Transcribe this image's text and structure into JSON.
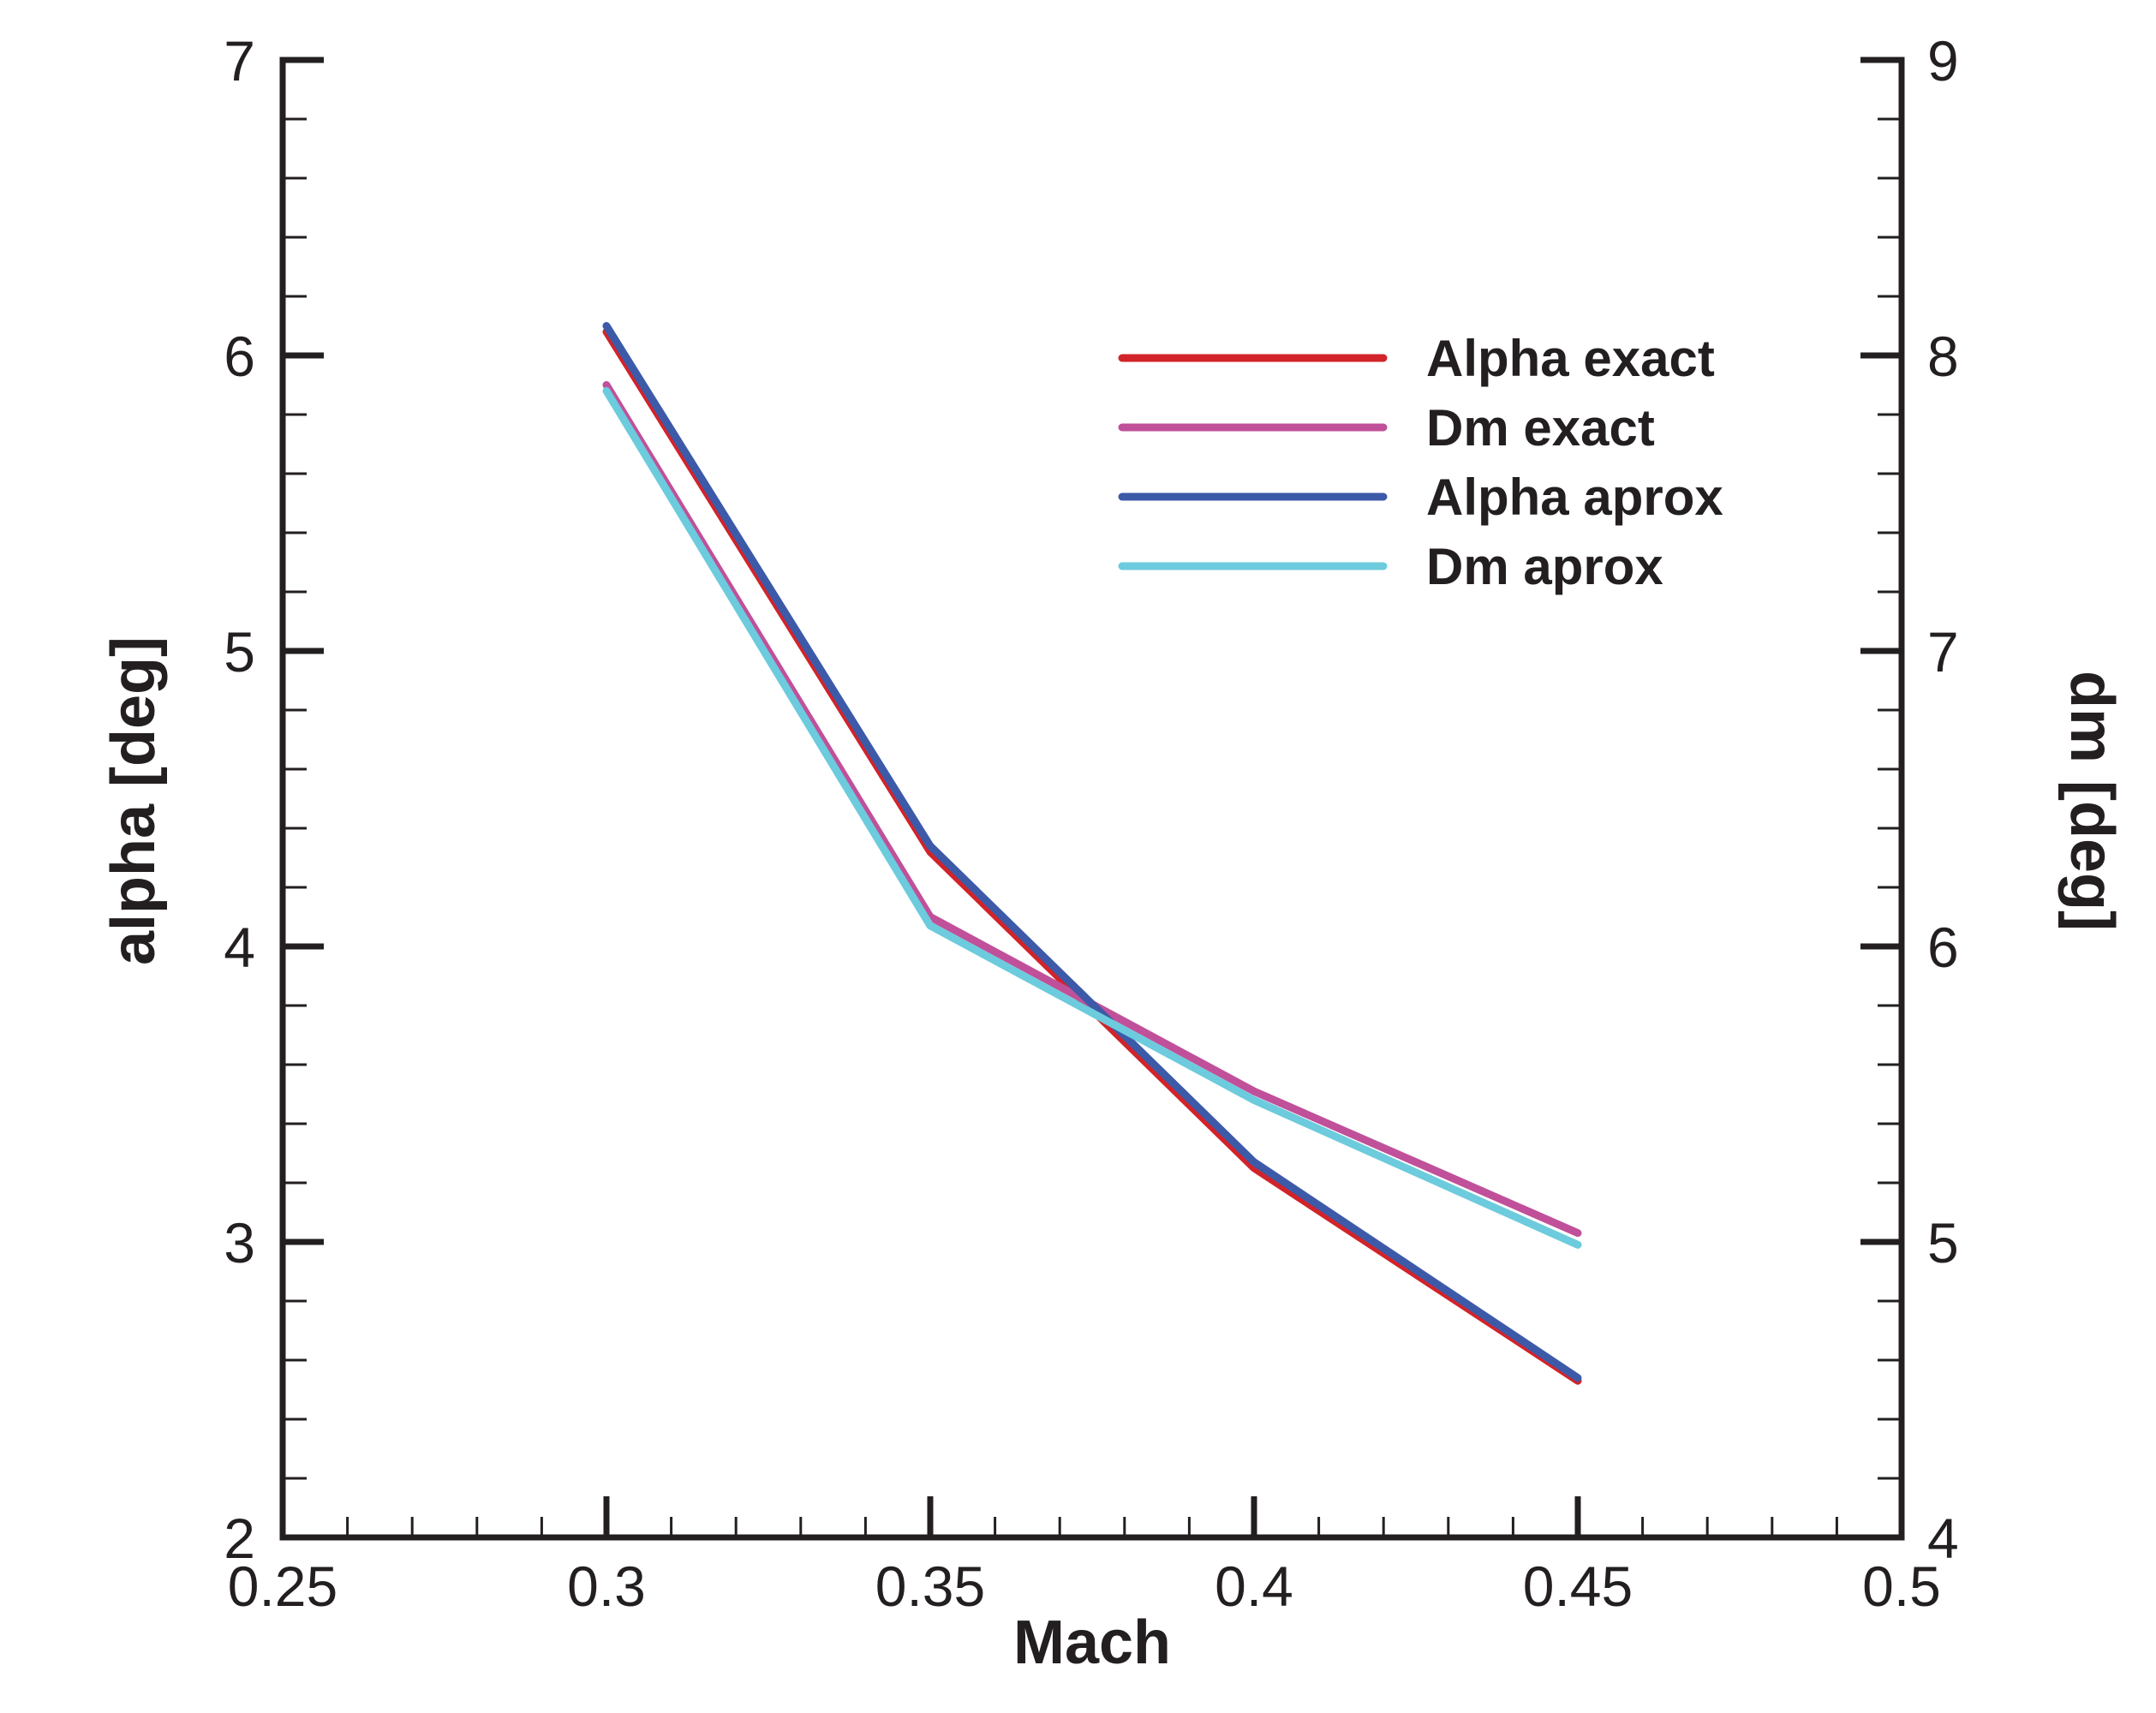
{
  "chart_data": {
    "type": "line",
    "xlabel": "Mach",
    "ylabel": "alpha [deg]",
    "y2label": "dm [deg]",
    "xlim": [
      0.25,
      0.5
    ],
    "ylim": [
      2,
      7
    ],
    "y2lim": [
      4,
      9
    ],
    "xticks": [
      "0.25",
      "0.3",
      "0.35",
      "0.4",
      "0.45",
      "0.5"
    ],
    "yticks": [
      "2",
      "3",
      "4",
      "5",
      "6",
      "7"
    ],
    "y2ticks": [
      "4",
      "5",
      "6",
      "7",
      "8",
      "9"
    ],
    "grid": false,
    "legend_position": "top-right",
    "x": [
      0.3,
      0.35,
      0.4,
      0.45
    ],
    "series": [
      {
        "name": "Alpha exact",
        "axis": "left",
        "color": "#d2232a",
        "values": [
          6.08,
          4.32,
          3.25,
          2.53
        ]
      },
      {
        "name": "Dm exact",
        "axis": "right",
        "color": "#c0509a",
        "values": [
          7.9,
          6.1,
          5.51,
          5.03
        ]
      },
      {
        "name": "Alpha aprox",
        "axis": "left",
        "color": "#3d5aa8",
        "values": [
          6.1,
          4.34,
          3.27,
          2.54
        ]
      },
      {
        "name": "Dm aprox",
        "axis": "right",
        "color": "#6ccbdc",
        "values": [
          7.88,
          6.07,
          5.48,
          4.99
        ]
      }
    ]
  }
}
